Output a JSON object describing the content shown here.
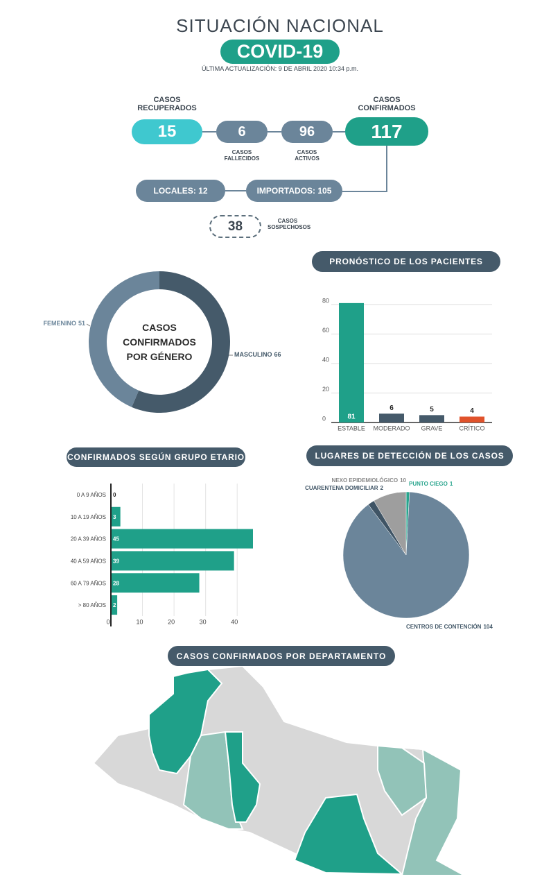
{
  "header": {
    "title": "SITUACIÓN NACIONAL",
    "badge": "COVID-19",
    "updated": "ÚLTIMA ACTUALIZACIÓN: 9 DE ABRIL 2020 10:34 p.m."
  },
  "summary": {
    "recovered": {
      "label": "CASOS RECUPERADOS",
      "value": 15
    },
    "deceased": {
      "label": "CASOS FALLECIDOS",
      "value": 6
    },
    "active": {
      "label": "CASOS ACTIVOS",
      "value": 96
    },
    "confirmed": {
      "label": "CASOS CONFIRMADOS",
      "value": 117
    },
    "local": "LOCALES: 12",
    "imported": "IMPORTADOS: 105",
    "suspected": {
      "label": "CASOS SOSPECHOSOS",
      "value": 38
    }
  },
  "chart_data": [
    {
      "type": "donut",
      "title": "CASOS CONFIRMADOS POR GÉNERO",
      "categories": [
        "MASCULINO",
        "FEMENINO"
      ],
      "values": [
        66,
        51
      ],
      "colors": [
        "#455a6a",
        "#6b859a"
      ]
    },
    {
      "type": "bar",
      "title": "PRONÓSTICO DE LOS PACIENTES",
      "categories": [
        "ESTABLE",
        "MODERADO",
        "GRAVE",
        "CRÍTICO"
      ],
      "values": [
        81,
        6,
        5,
        4
      ],
      "colors": [
        "#1fa089",
        "#455a6a",
        "#455a6a",
        "#e0522b"
      ],
      "ylim": [
        0,
        82
      ],
      "yticks": [
        0,
        20,
        40,
        60,
        80
      ],
      "grid": true
    },
    {
      "type": "hbar",
      "title": "CONFIRMADOS SEGÚN GRUPO ETARIO",
      "categories": [
        "0 A 9 AÑOS",
        "10 A 19 AÑOS",
        "20 A 39 AÑOS",
        "40 A 59 AÑOS",
        "60 A 79 AÑOS",
        "> 80 AÑOS"
      ],
      "values": [
        0,
        3,
        45,
        39,
        28,
        2
      ],
      "color": "#1fa089",
      "xlim": [
        0,
        45
      ],
      "xticks": [
        0,
        10,
        20,
        30,
        40
      ],
      "grid": true
    },
    {
      "type": "pie",
      "title": "LUGARES DE DETECCIÓN DE LOS CASOS",
      "categories": [
        "PUNTO CIEGO",
        "CENTROS DE CONTENCIÓN",
        "CUARENTENA DOMICILIAR",
        "NEXO EPIDEMIOLÓGICO"
      ],
      "values": [
        1,
        104,
        2,
        10
      ],
      "colors": [
        "#2aa58e",
        "#6b859a",
        "#3f5465",
        "#9e9e9e"
      ]
    }
  ],
  "map": {
    "title": "CASOS CONFIRMADOS POR DEPARTAMENTO"
  }
}
